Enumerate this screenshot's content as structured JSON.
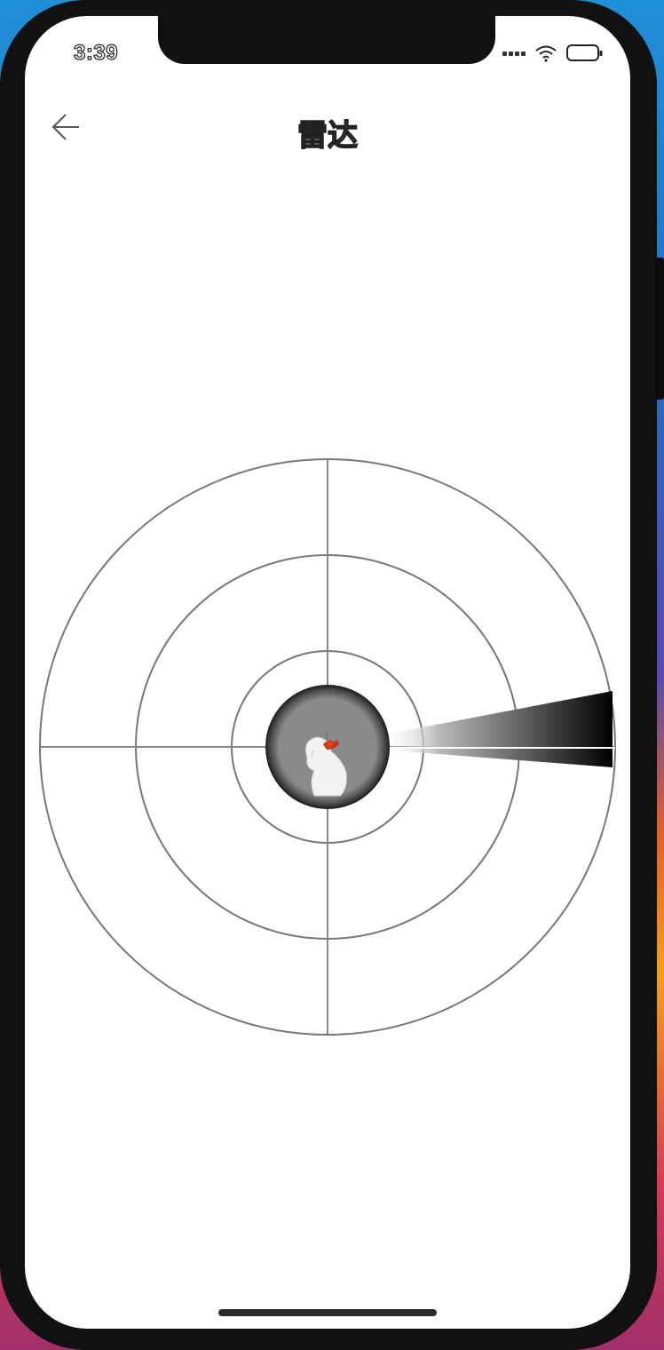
{
  "status_bar": {
    "time": "3:39",
    "icons": [
      "cellular-signal-icon",
      "wifi-icon",
      "battery-icon"
    ]
  },
  "nav": {
    "title": "雷达",
    "back_icon": "arrow-left-icon"
  },
  "radar": {
    "rings": 4,
    "center_avatar": "user-avatar",
    "sweep_color": "#000000",
    "ring_color": "#888888",
    "center_fill": "#8a8a8a"
  }
}
